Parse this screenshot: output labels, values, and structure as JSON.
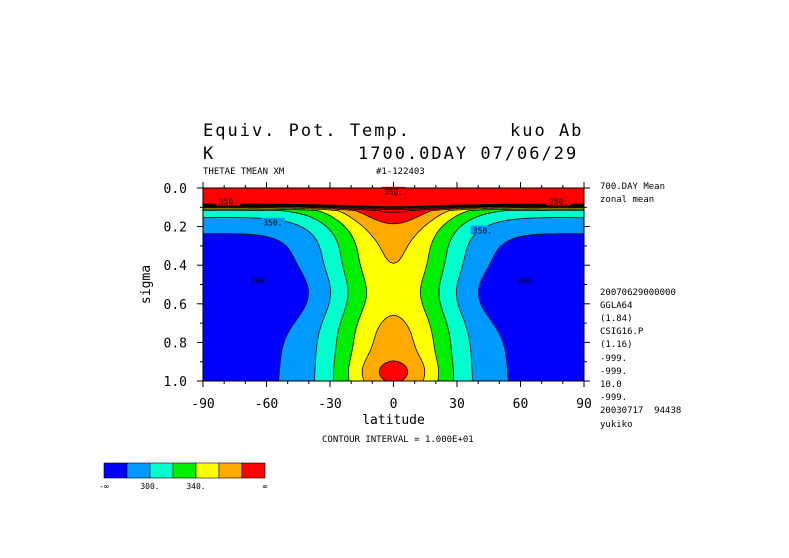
{
  "header": {
    "title": "Equiv. Pot. Temp.",
    "model": "kuo Ab",
    "units": "K",
    "time": "1700.0DAY 07/06/29",
    "varname": "THETAE TMEAN XM",
    "run_id": "#1-122403"
  },
  "right_info": [
    "700.DAY Mean",
    "zonal mean",
    "",
    "",
    "",
    "",
    "",
    "",
    "20070629000000",
    "GGLA64",
    "(1.84)",
    "CSIG16.P",
    "(1.16)",
    "-999.",
    "-999.",
    "10.0",
    "-999.",
    "20030717  94438",
    "yukiko"
  ],
  "colorbar": {
    "colors": [
      "#0000ff",
      "#0099ff",
      "#00ffcc",
      "#00ee00",
      "#ffff00",
      "#ffaa00",
      "#ff0000"
    ],
    "labels": [
      "-∞",
      "300.",
      "340.",
      "∞"
    ]
  },
  "chart_data": {
    "type": "heatmap",
    "xlabel": "latitude",
    "ylabel": "sigma",
    "xlim": [
      -90,
      90
    ],
    "ylim": [
      1.0,
      0.0
    ],
    "x_ticks": [
      -90,
      -60,
      -30,
      0,
      30,
      60,
      90
    ],
    "x_tick_labels": [
      "-90",
      "-60",
      "-30",
      "0",
      "30",
      "60",
      "90"
    ],
    "y_ticks": [
      0.0,
      0.2,
      0.4,
      0.6,
      0.8,
      1.0
    ],
    "y_tick_labels": [
      "0.0",
      "0.2",
      "0.4",
      "0.6",
      "0.8",
      "1.0"
    ],
    "contour_interval_label": "CONTOUR INTERVAL = 1.000E+01",
    "contour_interval": 10,
    "shading_levels": [
      300,
      310,
      320,
      330,
      340,
      350
    ],
    "shading_colors": [
      "#0000ff",
      "#0099ff",
      "#00ffcc",
      "#00ee00",
      "#ffff00",
      "#ffaa00",
      "#ff0000"
    ],
    "contour_labels": [
      {
        "text": "350.",
        "lat": -78,
        "sigma": 0.07
      },
      {
        "text": "350.",
        "lat": 0,
        "sigma": 0.02
      },
      {
        "text": "350.",
        "lat": 78,
        "sigma": 0.07
      },
      {
        "text": "350.",
        "lat": -57,
        "sigma": 0.18
      },
      {
        "text": "350.",
        "lat": 42,
        "sigma": 0.22
      },
      {
        "text": "300.",
        "lat": -63,
        "sigma": 0.48
      },
      {
        "text": "300.",
        "lat": 63,
        "sigma": 0.48
      }
    ]
  }
}
